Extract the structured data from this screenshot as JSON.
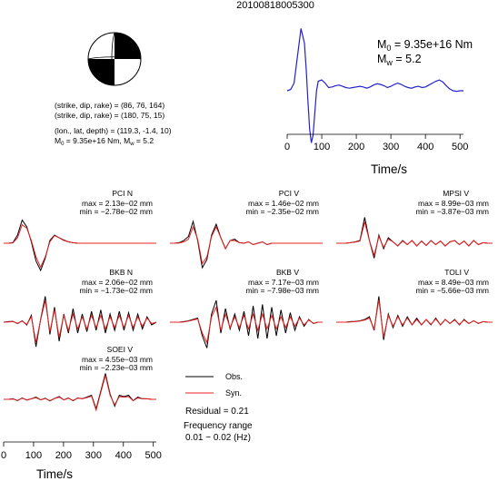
{
  "title": "20100818005300",
  "mechanism": {
    "plane1": "(strike, dip, rake) = (86, 76, 164)",
    "plane2": "(strike, dip, rake) = (180, 75, 15)",
    "location": "(lon., lat, depth) = (119.3, -1.4, 10)",
    "moment_prefix": "M",
    "moment_sub": "0",
    "moment_value": " = 9.35e+16 Nm, M",
    "mw_sub": "w",
    "mw_value": " = 5.2"
  },
  "stf": {
    "m0_label": "M",
    "m0_sub": "0",
    "m0_value": " = 9.35e+16 Nm",
    "mw_label": "M",
    "mw_sub": "w",
    "mw_value": " = 5.2"
  },
  "legend": {
    "obs": "Obs.",
    "syn": "Syn.",
    "residual": "Residual = 0.21",
    "freq_label": "Frequency range",
    "freq_value": "0.01 − 0.02 (Hz)"
  },
  "colors": {
    "obs": "#000000",
    "syn": "#e8201f",
    "stf": "#2222cc"
  },
  "chart_data": [
    {
      "type": "line",
      "id": "source-time-function",
      "xlabel": "Time/s",
      "xlim": [
        0,
        510
      ],
      "xticks": [
        0,
        100,
        200,
        300,
        400,
        500
      ],
      "series": [
        {
          "x": [
            0,
            10,
            20,
            30,
            40,
            50,
            55,
            60,
            65,
            70,
            75,
            80,
            85,
            90,
            100,
            110,
            120,
            130,
            140,
            150,
            160,
            170,
            180,
            190,
            200,
            210,
            220,
            230,
            240,
            250,
            260,
            270,
            280,
            290,
            300,
            310,
            320,
            330,
            340,
            350,
            360,
            370,
            380,
            390,
            400,
            410,
            420,
            430,
            440,
            450,
            460,
            470,
            480,
            490,
            500,
            510
          ],
          "y": [
            0.0,
            0.02,
            0.12,
            0.55,
            0.98,
            0.75,
            0.35,
            -0.15,
            -0.6,
            -0.82,
            -0.7,
            -0.35,
            0.0,
            0.15,
            0.17,
            0.12,
            0.05,
            0.06,
            0.08,
            0.09,
            0.07,
            0.05,
            0.04,
            0.05,
            0.06,
            0.07,
            0.06,
            0.04,
            0.06,
            0.09,
            0.11,
            0.1,
            0.08,
            0.05,
            0.07,
            0.1,
            0.12,
            0.1,
            0.07,
            0.05,
            0.04,
            0.06,
            0.07,
            0.05,
            0.06,
            0.09,
            0.12,
            0.15,
            0.17,
            0.14,
            0.08,
            0.03,
            0.0,
            -0.01,
            0.0,
            0.0
          ]
        }
      ]
    },
    {
      "type": "line",
      "id": "waveforms",
      "xlabel": "Time/s",
      "xlim": [
        0,
        510
      ],
      "xticks": [
        0,
        100,
        200,
        300,
        400,
        500
      ],
      "stations": [
        {
          "name": "PCI N",
          "max": "max = 2.13e−02 mm",
          "min": "min = −2.78e−02 mm",
          "obs": [
            0,
            0,
            0.02,
            0.3,
            0.85,
            0.6,
            0.05,
            -0.65,
            -1.0,
            -0.55,
            0.1,
            0.3,
            0.2,
            0.12,
            0.05,
            0.02,
            0,
            0,
            0,
            0,
            0,
            0,
            0,
            0,
            0,
            0,
            0,
            0,
            0,
            0,
            0,
            0,
            0,
            0
          ],
          "syn": [
            0,
            0,
            0.01,
            0.2,
            0.68,
            0.55,
            0.1,
            -0.5,
            -0.88,
            -0.5,
            0.05,
            0.28,
            0.2,
            0.1,
            0.05,
            0.02,
            0,
            0,
            0,
            0,
            0,
            0,
            0,
            0,
            0,
            0,
            0,
            0,
            0,
            0,
            0,
            0,
            0,
            0
          ]
        },
        {
          "name": "PCI V",
          "max": "max = 1.46e−02 mm",
          "min": "min = −2.35e−02 mm",
          "obs": [
            0,
            0,
            0.02,
            0.1,
            0.25,
            0.8,
            0.1,
            -0.9,
            -0.6,
            0.3,
            0.7,
            0.2,
            -0.2,
            0.1,
            0.15,
            0.02,
            0,
            0.05,
            -0.05,
            0,
            0.05,
            -0.05,
            0,
            0,
            0,
            0,
            0,
            0,
            0,
            0,
            0,
            0,
            0,
            0
          ],
          "syn": [
            0,
            0,
            0.01,
            0.05,
            0.15,
            0.6,
            0.15,
            -0.75,
            -0.5,
            0.25,
            0.6,
            0.2,
            -0.2,
            0.1,
            0.1,
            0.02,
            0,
            0.05,
            -0.05,
            0,
            0.05,
            -0.05,
            0,
            0,
            0,
            0,
            0,
            0,
            0,
            0,
            0,
            0,
            0,
            0
          ]
        },
        {
          "name": "MPSI V",
          "max": "max = 8.99e−03 mm",
          "min": "min = −3.87e−03 mm",
          "obs": [
            0,
            0,
            0,
            0.02,
            0.05,
            0.1,
            0.95,
            0.1,
            -0.55,
            0.3,
            -0.2,
            0.2,
            0.05,
            -0.1,
            0.1,
            -0.05,
            0.1,
            -0.1,
            0.08,
            -0.08,
            0.1,
            -0.05,
            0.08,
            -0.1,
            0.05,
            0.1,
            -0.05,
            0.08,
            -0.1,
            0.1,
            -0.05,
            0.02,
            0,
            0
          ],
          "syn": [
            0,
            0,
            0,
            0.02,
            0.04,
            0.08,
            0.78,
            0.1,
            -0.45,
            0.25,
            -0.15,
            0.15,
            0.05,
            -0.1,
            0.08,
            -0.05,
            0.1,
            -0.1,
            0.08,
            -0.08,
            0.1,
            -0.05,
            0.08,
            -0.1,
            0.05,
            0.1,
            -0.05,
            0.08,
            -0.1,
            0.1,
            -0.05,
            0.02,
            0,
            0
          ]
        },
        {
          "name": "BKB N",
          "max": "max = 2.06e−02 mm",
          "min": "min = −1.73e−02 mm",
          "obs": [
            0,
            0.02,
            0.03,
            -0.05,
            0.05,
            -0.1,
            0.25,
            -0.9,
            0.1,
            0.95,
            -0.45,
            0.55,
            -0.7,
            0.3,
            -0.4,
            0.5,
            -0.4,
            0.3,
            -0.35,
            0.4,
            -0.3,
            0.45,
            -0.4,
            0.3,
            -0.3,
            0.4,
            -0.3,
            0.35,
            -0.3,
            0.3,
            -0.25,
            0.2,
            -0.1,
            0
          ],
          "syn": [
            0,
            0.01,
            0.02,
            -0.04,
            0.04,
            -0.08,
            0.2,
            -0.75,
            0.08,
            0.8,
            -0.35,
            0.45,
            -0.55,
            0.25,
            -0.3,
            0.3,
            -0.25,
            0.2,
            -0.25,
            0.25,
            -0.2,
            0.25,
            -0.25,
            0.2,
            -0.2,
            0.25,
            -0.2,
            0.25,
            -0.2,
            0.2,
            -0.15,
            0.15,
            -0.05,
            0
          ]
        },
        {
          "name": "BKB V",
          "max": "max = 7.17e−03 mm",
          "min": "min = −7.98e−03 mm",
          "obs": [
            0,
            0,
            0,
            0.02,
            0.05,
            0.1,
            0.15,
            -0.5,
            -0.95,
            0.3,
            0.8,
            -0.4,
            0.5,
            -0.25,
            0.3,
            -0.3,
            0.4,
            -0.5,
            0.6,
            -0.6,
            0.65,
            -0.6,
            0.55,
            -0.5,
            0.45,
            -0.4,
            0.35,
            -0.3,
            0.2,
            -0.15,
            0.1,
            -0.05,
            0,
            0
          ],
          "syn": [
            0,
            0,
            0,
            0.01,
            0.04,
            0.08,
            0.12,
            -0.4,
            -0.75,
            0.2,
            0.55,
            -0.3,
            0.3,
            -0.2,
            0.2,
            -0.2,
            0.25,
            -0.25,
            0.3,
            -0.3,
            0.3,
            -0.25,
            0.25,
            -0.25,
            0.2,
            -0.2,
            0.2,
            -0.15,
            0.15,
            -0.1,
            0.08,
            -0.04,
            0,
            0
          ]
        },
        {
          "name": "TOLI V",
          "max": "max = 8.49e−03 mm",
          "min": "min = −5.66e−03 mm",
          "obs": [
            0,
            0,
            0,
            0.02,
            0.03,
            0.05,
            0.1,
            0.2,
            -0.3,
            0.95,
            -0.65,
            0.3,
            -0.2,
            0.25,
            -0.15,
            0.2,
            -0.1,
            0.15,
            -0.1,
            0.1,
            -0.1,
            0.15,
            -0.1,
            0.1,
            -0.05,
            0.1,
            -0.1,
            0.1,
            -0.05,
            0.05,
            -0.05,
            0.02,
            0,
            0
          ],
          "syn": [
            0,
            0,
            0,
            0.01,
            0.02,
            0.04,
            0.08,
            0.15,
            -0.25,
            0.82,
            -0.55,
            0.25,
            -0.15,
            0.2,
            -0.1,
            0.15,
            -0.1,
            0.1,
            -0.1,
            0.1,
            -0.08,
            0.12,
            -0.1,
            0.1,
            -0.05,
            0.08,
            -0.08,
            0.08,
            -0.05,
            0.05,
            -0.04,
            0.02,
            0,
            0
          ]
        },
        {
          "name": "SOEI V",
          "max": "max = 4.55e−03 mm",
          "min": "min = −2.23e−03 mm",
          "obs": [
            0,
            0,
            0.02,
            -0.05,
            0.05,
            -0.03,
            0.02,
            0.08,
            -0.02,
            0.04,
            -0.06,
            0.03,
            0.1,
            -0.02,
            0.05,
            -0.05,
            0.05,
            0.02,
            0.08,
            0.15,
            -0.35,
            0.3,
            0.95,
            0.2,
            -0.25,
            0.15,
            0.1,
            0.15,
            -0.05,
            0.08,
            0.02,
            0.02,
            0,
            0
          ],
          "syn": [
            0,
            0,
            0.01,
            -0.04,
            0.04,
            -0.02,
            0.02,
            0.06,
            -0.02,
            0.03,
            -0.05,
            0.03,
            0.08,
            -0.02,
            0.04,
            -0.04,
            0.04,
            0.02,
            0.06,
            0.12,
            -0.4,
            0.25,
            0.88,
            0.15,
            -0.2,
            0.1,
            0.08,
            0.1,
            -0.05,
            0.05,
            0.02,
            0.02,
            0,
            0
          ]
        }
      ]
    }
  ]
}
